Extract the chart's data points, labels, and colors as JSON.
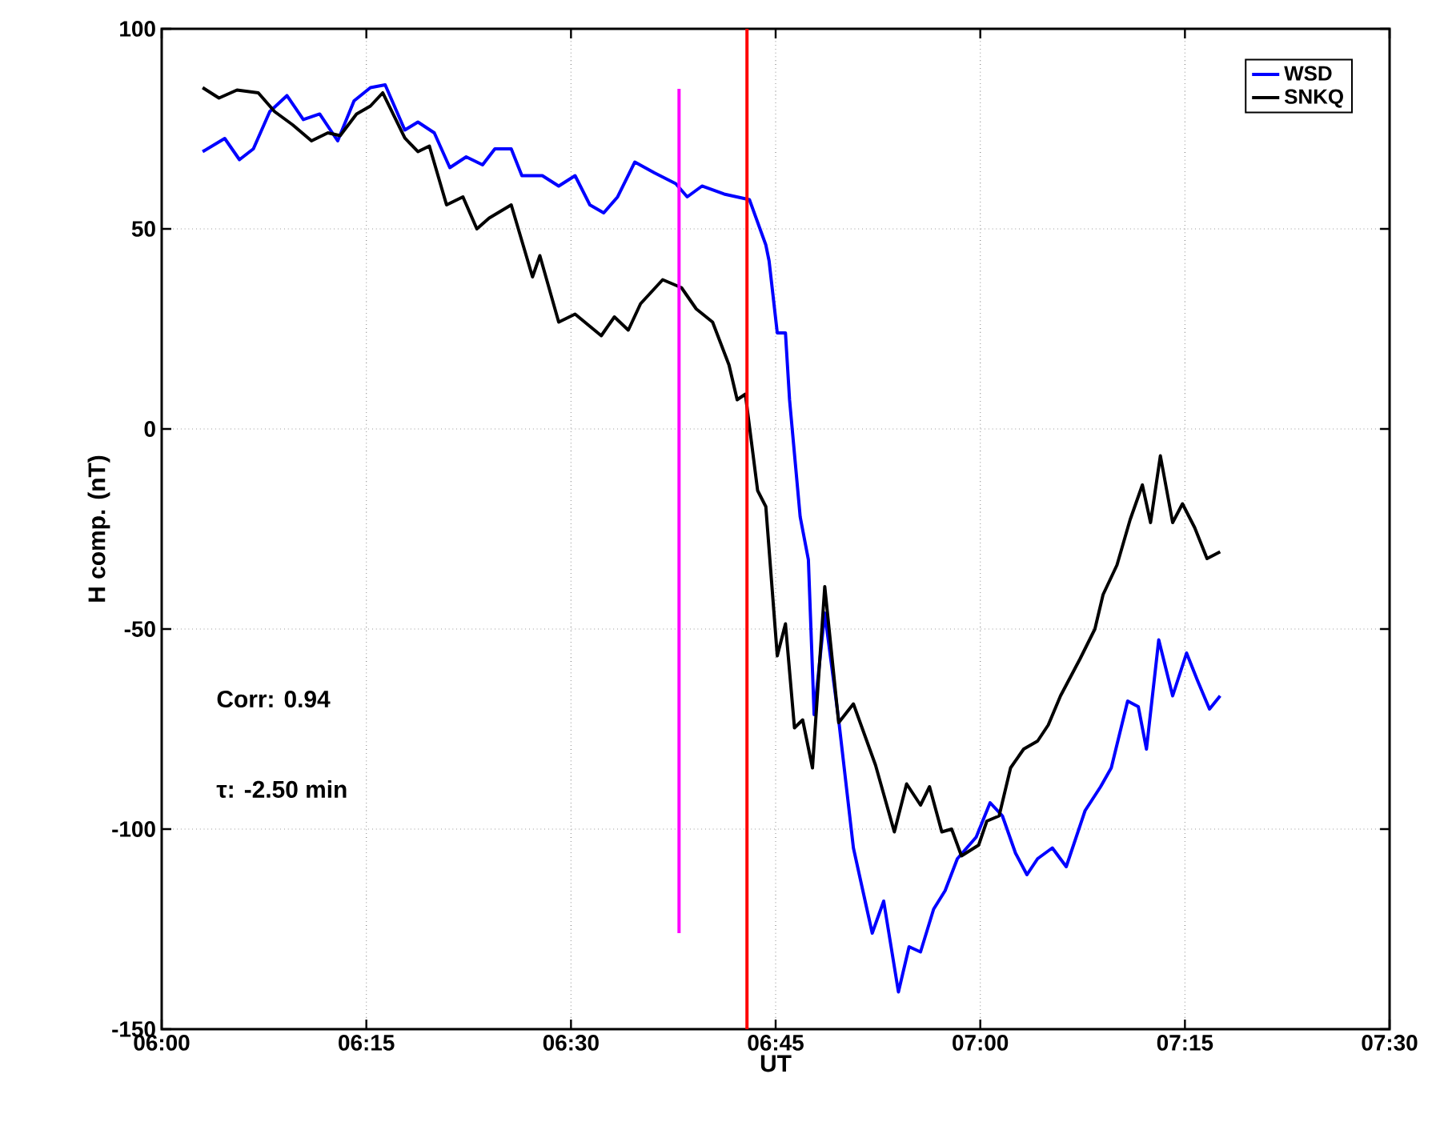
{
  "chart_data": {
    "type": "line",
    "xlabel": "UT",
    "ylabel": "H comp. (nT)",
    "xlim": [
      6,
      7.5
    ],
    "ylim": [
      -150,
      100
    ],
    "xticks": [
      {
        "value": 6,
        "label": "06:00"
      },
      {
        "value": 6.25,
        "label": "06:15"
      },
      {
        "value": 6.5,
        "label": "06:30"
      },
      {
        "value": 6.75,
        "label": "06:45"
      },
      {
        "value": 7,
        "label": "07:00"
      },
      {
        "value": 7.25,
        "label": "07:15"
      },
      {
        "value": 7.5,
        "label": "07:30"
      }
    ],
    "yticks": [
      -150,
      -100,
      -50,
      0,
      50,
      100
    ],
    "grid": true,
    "legend": "top right",
    "annotations": [
      "Corr: 0.94",
      "τ: -2.50 min"
    ],
    "ref_lines": [
      {
        "axis": "x",
        "value": 6.715,
        "color": "#ff0000"
      }
    ],
    "series": [
      {
        "name": "WSD",
        "color": "#0000ff",
        "x": [
          6.05,
          6.077,
          6.095,
          6.112,
          6.132,
          6.153,
          6.173,
          6.193,
          6.215,
          6.235,
          6.255,
          6.273,
          6.297,
          6.313,
          6.333,
          6.352,
          6.372,
          6.392,
          6.407,
          6.427,
          6.44,
          6.465,
          6.485,
          6.505,
          6.523,
          6.54,
          6.557,
          6.578,
          6.602,
          6.628,
          6.642,
          6.66,
          6.687,
          6.718,
          6.738,
          6.742,
          6.752,
          6.762,
          6.767,
          6.78,
          6.79,
          6.797,
          6.81,
          6.827,
          6.845,
          6.868,
          6.882,
          6.9,
          6.913,
          6.927,
          6.943,
          6.957,
          6.972,
          6.995,
          7.012,
          7.027,
          7.043,
          7.057,
          7.07,
          7.088,
          7.105,
          7.128,
          7.147,
          7.16,
          7.18,
          7.193,
          7.203,
          7.218,
          7.235,
          7.252,
          7.265,
          7.28,
          7.293
        ],
        "values": [
          69.3,
          72.6,
          67.3,
          70,
          79.3,
          83.3,
          77.3,
          78.7,
          72,
          82,
          85.3,
          86,
          74.7,
          76.7,
          74,
          65.3,
          68,
          66,
          70,
          70,
          63.3,
          63.3,
          60.7,
          63.3,
          56,
          54,
          58,
          66.7,
          64,
          61.3,
          58,
          60.7,
          58.7,
          57.3,
          46,
          42,
          24,
          24,
          7.3,
          -22,
          -32.7,
          -71.4,
          -46,
          -72.7,
          -104.7,
          -126,
          -118,
          -140.7,
          -129.4,
          -130.7,
          -120,
          -115.4,
          -107.4,
          -102,
          -93.4,
          -96.7,
          -106,
          -111.4,
          -107.4,
          -104.7,
          -109.4,
          -95.4,
          -89.4,
          -84.7,
          -68,
          -69.4,
          -80,
          -52.7,
          -66.7,
          -56,
          -62.7,
          -70,
          -66.7
        ]
      },
      {
        "name": "SNKQ",
        "color": "#000000",
        "x": [
          6.05,
          6.07,
          6.092,
          6.118,
          6.138,
          6.16,
          6.183,
          6.203,
          6.218,
          6.238,
          6.255,
          6.27,
          6.297,
          6.313,
          6.327,
          6.348,
          6.368,
          6.385,
          6.4,
          6.427,
          6.453,
          6.462,
          6.485,
          6.505,
          6.537,
          6.553,
          6.57,
          6.585,
          6.612,
          6.635,
          6.653,
          6.673,
          6.693,
          6.703,
          6.713,
          6.728,
          6.738,
          6.752,
          6.762,
          6.773,
          6.783,
          6.795,
          6.81,
          6.827,
          6.845,
          6.872,
          6.895,
          6.91,
          6.927,
          6.938,
          6.953,
          6.965,
          6.977,
          6.998,
          7.008,
          7.023,
          7.037,
          7.053,
          7.07,
          7.083,
          7.098,
          7.122,
          7.14,
          7.15,
          7.167,
          7.183,
          7.198,
          7.208,
          7.22,
          7.235,
          7.247,
          7.262,
          7.277,
          7.293
        ],
        "values": [
          85.3,
          82.7,
          84.7,
          84,
          79.3,
          76,
          72,
          74,
          73.3,
          78.7,
          80.7,
          84,
          72.7,
          69.3,
          70.7,
          56,
          58,
          50,
          52.7,
          56,
          38,
          43.3,
          26.7,
          28.7,
          23.3,
          28,
          24.7,
          31.3,
          37.3,
          35.3,
          30,
          26.7,
          16,
          7.3,
          8.7,
          -15.4,
          -19.4,
          -56.7,
          -48.7,
          -74.7,
          -72.7,
          -84.7,
          -39.4,
          -73.4,
          -68.7,
          -84,
          -100.7,
          -88.7,
          -94,
          -89.4,
          -100.7,
          -100,
          -106.7,
          -104,
          -98,
          -96.7,
          -84.7,
          -80,
          -78,
          -74,
          -66.7,
          -57.4,
          -50,
          -41.4,
          -34,
          -22.7,
          -14,
          -23.4,
          -6.7,
          -23.4,
          -18.7,
          -24.7,
          -32.4,
          -30.7
        ]
      },
      {
        "color": "#ff00ff",
        "x": [
          6.632,
          6.632
        ],
        "values": [
          85,
          -126
        ]
      }
    ]
  }
}
